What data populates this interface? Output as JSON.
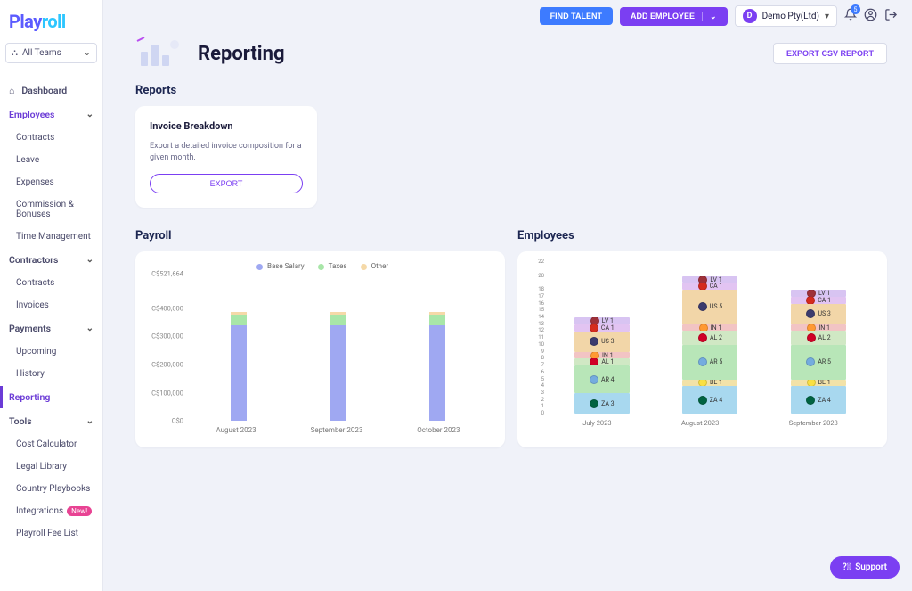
{
  "brand": {
    "part1": "Play",
    "part2": "roll"
  },
  "sidebar": {
    "teamSelector": "All Teams",
    "dashboard": "Dashboard",
    "employees": {
      "label": "Employees",
      "items": [
        "Contracts",
        "Leave",
        "Expenses",
        "Commission & Bonuses",
        "Time Management"
      ]
    },
    "contractors": {
      "label": "Contractors",
      "items": [
        "Contracts",
        "Invoices"
      ]
    },
    "payments": {
      "label": "Payments",
      "items": [
        "Upcoming",
        "History"
      ]
    },
    "reporting": "Reporting",
    "tools": {
      "label": "Tools",
      "items": [
        "Cost Calculator",
        "Legal Library",
        "Country Playbooks",
        "Integrations",
        "Playroll Fee List"
      ],
      "newBadgeIndex": 3,
      "newBadgeText": "New!"
    }
  },
  "topbar": {
    "findTalent": "FIND TALENT",
    "addEmployee": "ADD EMPLOYEE",
    "orgName": "Demo Pty(Ltd)",
    "orgInitial": "D",
    "notificationCount": "5"
  },
  "page": {
    "title": "Reporting",
    "exportCsv": "EXPORT CSV REPORT",
    "reportsHeading": "Reports",
    "invoiceCard": {
      "title": "Invoice Breakdown",
      "desc": "Export a detailed invoice composition for a given month.",
      "btn": "EXPORT"
    },
    "payrollHeading": "Payroll",
    "employeesHeading": "Employees"
  },
  "payrollChart": {
    "type": "stacked-bar",
    "currencyPrefix": "C$",
    "legend": [
      {
        "label": "Base Salary",
        "color": "#9fa8f2"
      },
      {
        "label": "Taxes",
        "color": "#a8e6a8"
      },
      {
        "label": "Other",
        "color": "#f5d9a8"
      }
    ],
    "yTop": 521664,
    "yTicks": [
      {
        "v": 521664,
        "label": "C$521,664"
      },
      {
        "v": 400000,
        "label": "C$400,000"
      },
      {
        "v": 300000,
        "label": "C$300,000"
      },
      {
        "v": 200000,
        "label": "C$200,000"
      },
      {
        "v": 100000,
        "label": "C$100,000"
      },
      {
        "v": 0,
        "label": "C$0"
      }
    ],
    "months": [
      {
        "label": "August 2023",
        "base": 340000,
        "taxes": 38000,
        "other": 8000
      },
      {
        "label": "September 2023",
        "base": 340000,
        "taxes": 38000,
        "other": 8000
      },
      {
        "label": "October 2023",
        "base": 340000,
        "taxes": 38000,
        "other": 8000
      }
    ]
  },
  "employeesChart": {
    "type": "stacked-bar",
    "yMax": 22,
    "yTicks": [
      22,
      20,
      18,
      17,
      16,
      15,
      14,
      13,
      12,
      11,
      10,
      9,
      8,
      7,
      6,
      5,
      4,
      3,
      2,
      1,
      0
    ],
    "countryColors": {
      "ZA": "#a8d8ef",
      "AR": "#b8e6b8",
      "AL": "#d0e8c4",
      "IN": "#f2c4c4",
      "US": "#f2d6a8",
      "CA": "#e2c4f2",
      "LV": "#d8c4f2",
      "BE": "#f2e2a8"
    },
    "flagColors": {
      "ZA": "#006341",
      "AR": "#74acdf",
      "AL": "#d00027",
      "IN": "#ff9933",
      "US": "#3c3b6e",
      "CA": "#d52b1e",
      "LV": "#9e3039",
      "BE": "#fae042"
    },
    "months": [
      {
        "label": "July 2023",
        "stack": [
          {
            "c": "ZA",
            "n": 3
          },
          {
            "c": "AR",
            "n": 4
          },
          {
            "c": "AL",
            "n": 1
          },
          {
            "c": "IN",
            "n": 1
          },
          {
            "c": "US",
            "n": 3
          },
          {
            "c": "CA",
            "n": 1
          },
          {
            "c": "LV",
            "n": 1
          }
        ]
      },
      {
        "label": "August 2023",
        "stack": [
          {
            "c": "ZA",
            "n": 4
          },
          {
            "c": "BE",
            "n": 1
          },
          {
            "c": "AR",
            "n": 5
          },
          {
            "c": "AL",
            "n": 2
          },
          {
            "c": "IN",
            "n": 1
          },
          {
            "c": "US",
            "n": 5
          },
          {
            "c": "CA",
            "n": 1
          },
          {
            "c": "LV",
            "n": 1
          }
        ]
      },
      {
        "label": "September 2023",
        "stack": [
          {
            "c": "ZA",
            "n": 4
          },
          {
            "c": "BE",
            "n": 1
          },
          {
            "c": "AR",
            "n": 5
          },
          {
            "c": "AL",
            "n": 2
          },
          {
            "c": "IN",
            "n": 1
          },
          {
            "c": "US",
            "n": 3
          },
          {
            "c": "CA",
            "n": 1
          },
          {
            "c": "LV",
            "n": 1
          }
        ]
      }
    ]
  },
  "support": "Support"
}
